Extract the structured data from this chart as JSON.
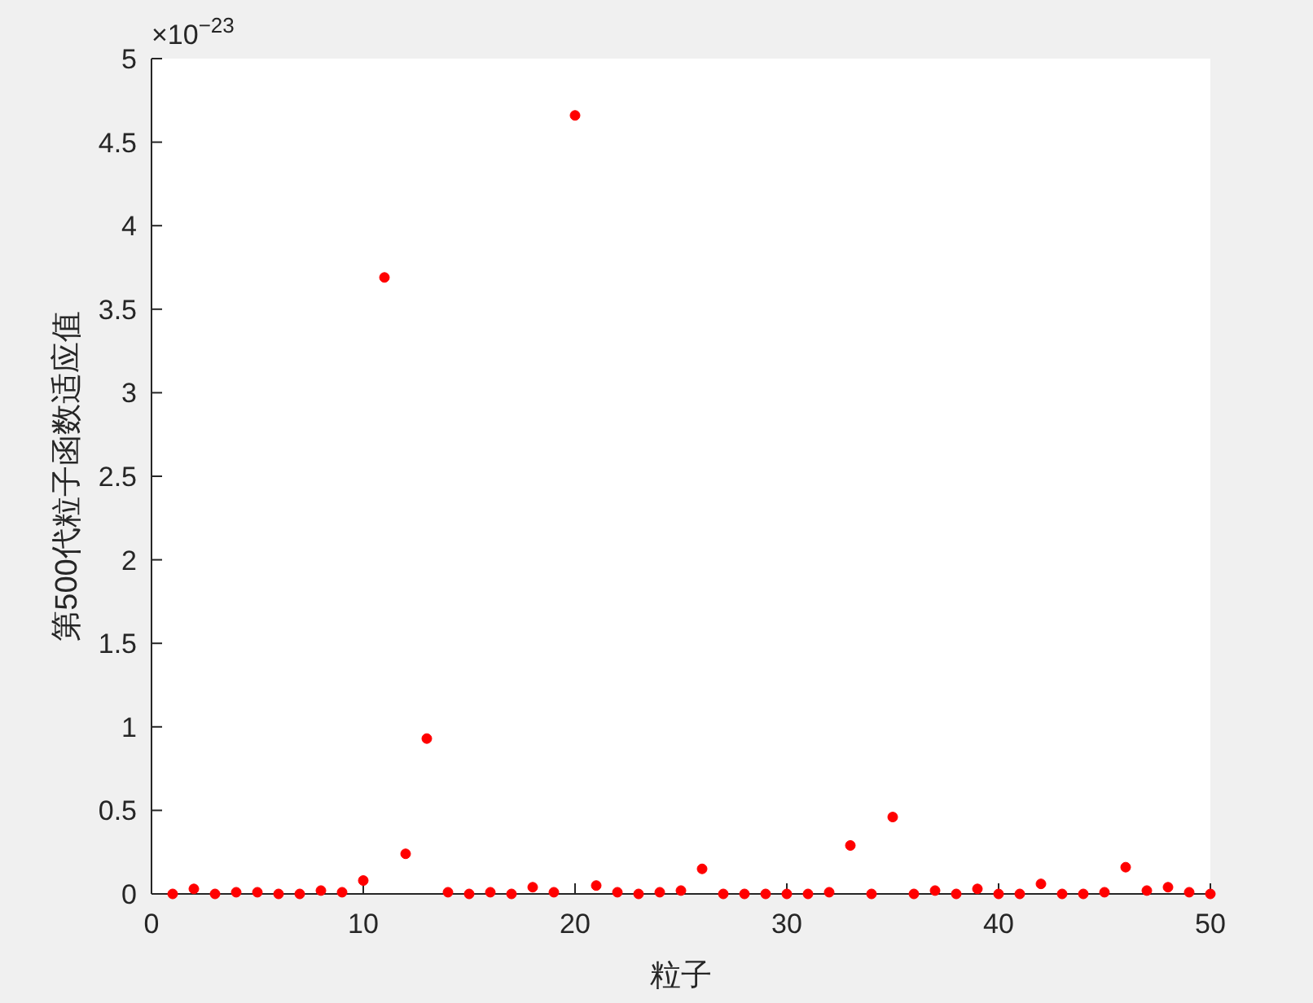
{
  "chart_data": {
    "type": "scatter",
    "xlabel": "粒子",
    "ylabel": "第500代粒子函数适应值",
    "annotations": [
      "×10$^{−23}$"
    ],
    "x": [
      1,
      2,
      3,
      4,
      5,
      6,
      7,
      8,
      9,
      10,
      11,
      12,
      13,
      14,
      15,
      16,
      17,
      18,
      19,
      20,
      21,
      22,
      23,
      24,
      25,
      26,
      27,
      28,
      29,
      30,
      31,
      32,
      33,
      34,
      35,
      36,
      37,
      38,
      39,
      40,
      41,
      42,
      43,
      44,
      45,
      46,
      47,
      48,
      49,
      50
    ],
    "values": [
      0,
      0.03,
      0,
      0.01,
      0.01,
      0,
      0,
      0.02,
      0.01,
      0.08,
      3.69,
      0.24,
      0.93,
      0.01,
      0,
      0.01,
      0,
      0.04,
      0.01,
      4.66,
      0.05,
      0.01,
      0,
      0.01,
      0.02,
      0.15,
      0,
      0,
      0,
      0,
      0,
      0.01,
      0.29,
      0,
      0.46,
      0,
      0.02,
      0,
      0.03,
      0,
      0,
      0.06,
      0,
      0,
      0.01,
      0.16,
      0.02,
      0.04,
      0.01,
      0
    ],
    "color": "#ff0000",
    "marker": "circle",
    "xlim": [
      0,
      50
    ],
    "xticks": [
      0,
      10,
      20,
      30,
      40,
      50
    ],
    "ylim": [
      0,
      5
    ],
    "yticks": [
      0,
      0.5,
      1,
      1.5,
      2,
      2.5,
      3,
      3.5,
      4,
      4.5,
      5
    ]
  }
}
